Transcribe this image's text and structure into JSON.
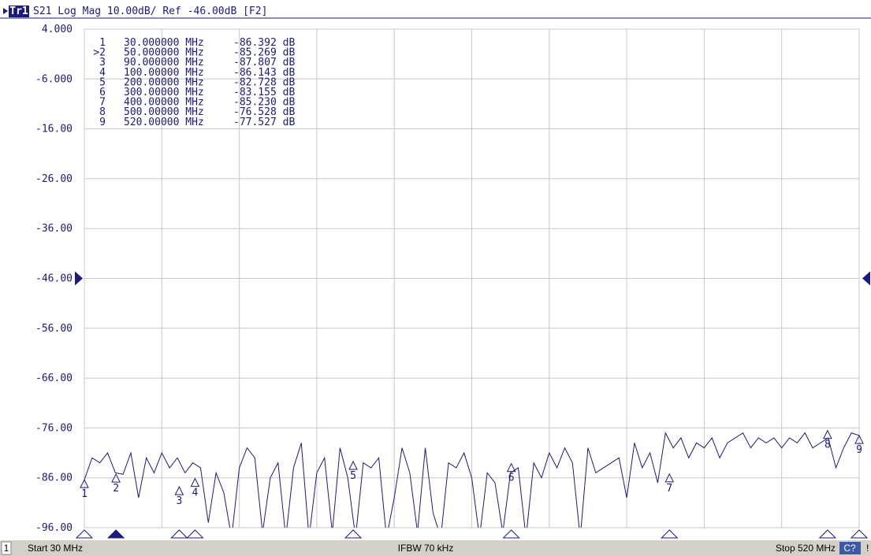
{
  "chart_data": {
    "type": "line",
    "channel_title": "Tr1",
    "title": "S21 Log Mag 10.00dB/ Ref -46.00dB [F2]",
    "ref_level": -46,
    "xlim": [
      30,
      520
    ],
    "xticks": [
      30,
      79,
      128,
      177,
      226,
      275,
      324,
      373,
      422,
      471,
      520
    ],
    "ylim": [
      -96,
      4
    ],
    "yticks": [
      {
        "value": 4,
        "label": "4.000"
      },
      {
        "value": -6,
        "label": "-6.000"
      },
      {
        "value": -16,
        "label": "-16.00"
      },
      {
        "value": -26,
        "label": "-26.00"
      },
      {
        "value": -36,
        "label": "-36.00"
      },
      {
        "value": -46,
        "label": "-46.00"
      },
      {
        "value": -56,
        "label": "-56.00"
      },
      {
        "value": -66,
        "label": "-66.00"
      },
      {
        "value": -76,
        "label": "-76.00"
      },
      {
        "value": -86,
        "label": "-86.00"
      },
      {
        "value": -96,
        "label": "-96.00"
      }
    ],
    "grid": true,
    "color": "#1a1a80",
    "x": [
      30,
      34.9,
      39.8,
      44.7,
      49.6,
      54.5,
      59.4,
      64.3,
      69.2,
      74.1,
      79,
      83.9,
      88.8,
      93.7,
      98.6,
      103.5,
      108.4,
      113.3,
      118.2,
      123.1,
      128,
      132.9,
      137.8,
      142.7,
      147.6,
      152.5,
      157.4,
      162.3,
      167.2,
      172.1,
      177,
      181.9,
      186.8,
      191.7,
      196.6,
      201.5,
      206.4,
      211.3,
      216.2,
      221.1,
      226,
      230.9,
      235.8,
      240.7,
      245.6,
      250.5,
      255.4,
      260.3,
      265.2,
      270.1,
      275,
      279.9,
      284.8,
      289.7,
      294.6,
      299.5,
      304.4,
      309.3,
      314.2,
      319.1,
      324,
      328.9,
      333.8,
      338.7,
      343.6,
      348.5,
      353.4,
      358.3,
      363.2,
      368.1,
      373,
      377.9,
      382.8,
      387.7,
      392.6,
      397.5,
      402.4,
      407.3,
      412.2,
      417.1,
      422,
      426.9,
      431.8,
      436.7,
      441.6,
      446.5,
      451.4,
      456.3,
      461.2,
      466.1,
      471,
      475.9,
      480.8,
      485.7,
      490.6,
      495.5,
      500.4,
      505.3,
      510.2,
      515.1,
      520
    ],
    "values": [
      -86.4,
      -82,
      -83,
      -81,
      -85,
      -85.3,
      -81,
      -90,
      -82,
      -85,
      -81,
      -84,
      -82,
      -85,
      -83,
      -84,
      -95,
      -85,
      -89,
      -98,
      -84,
      -80,
      -82,
      -97,
      -86,
      -83,
      -98,
      -84,
      -79,
      -98,
      -85,
      -82,
      -97,
      -80,
      -86,
      -98,
      -83,
      -84,
      -82,
      -98,
      -90,
      -80,
      -85,
      -97,
      -80,
      -93,
      -98,
      -83,
      -84,
      -81,
      -86,
      -98,
      -85,
      -87,
      -97,
      -85,
      -84,
      -98,
      -83,
      -86,
      -81,
      -84,
      -80,
      -83,
      -98,
      -80,
      -85,
      -84,
      -83,
      -82,
      -90,
      -79,
      -84,
      -81,
      -87,
      -77,
      -80,
      -78,
      -82,
      -79,
      -80,
      -78,
      -82,
      -79,
      -78,
      -77,
      -80,
      -78,
      -79,
      -78,
      -80,
      -78,
      -79,
      -77,
      -80,
      -79,
      -78,
      -84,
      -80,
      -77,
      -77.5
    ],
    "active_marker": 1,
    "markers": [
      {
        "name": "1",
        "table_name": "1",
        "x": 30,
        "value": -86.392,
        "x_label": "30.000000 MHz",
        "value_label": "-86.392 dB"
      },
      {
        "name": "2",
        "table_name": ">2",
        "x": 50,
        "value": -85.269,
        "x_label": "50.000000 MHz",
        "value_label": "-85.269 dB"
      },
      {
        "name": "3",
        "table_name": "3",
        "x": 90,
        "value": -87.807,
        "x_label": "90.000000 MHz",
        "value_label": "-87.807 dB"
      },
      {
        "name": "4",
        "table_name": "4",
        "x": 100,
        "value": -86.143,
        "x_label": "100.00000 MHz",
        "value_label": "-86.143 dB"
      },
      {
        "name": "5",
        "table_name": "5",
        "x": 200,
        "value": -82.728,
        "x_label": "200.00000 MHz",
        "value_label": "-82.728 dB"
      },
      {
        "name": "6",
        "table_name": "6",
        "x": 300,
        "value": -83.155,
        "x_label": "300.00000 MHz",
        "value_label": "-83.155 dB"
      },
      {
        "name": "7",
        "table_name": "7",
        "x": 400,
        "value": -85.23,
        "x_label": "400.00000 MHz",
        "value_label": "-85.230 dB"
      },
      {
        "name": "8",
        "table_name": "8",
        "x": 500,
        "value": -76.528,
        "x_label": "500.00000 MHz",
        "value_label": "-76.528 dB"
      },
      {
        "name": "9",
        "table_name": "9",
        "x": 520,
        "value": -77.527,
        "x_label": "520.00000 MHz",
        "value_label": "-77.527 dB"
      }
    ],
    "status": {
      "channel": "1",
      "start": "Start 30 MHz",
      "ifbw": "IFBW 70 kHz",
      "stop": "Stop 520 MHz",
      "cal": "C?",
      "flag": "!"
    }
  }
}
